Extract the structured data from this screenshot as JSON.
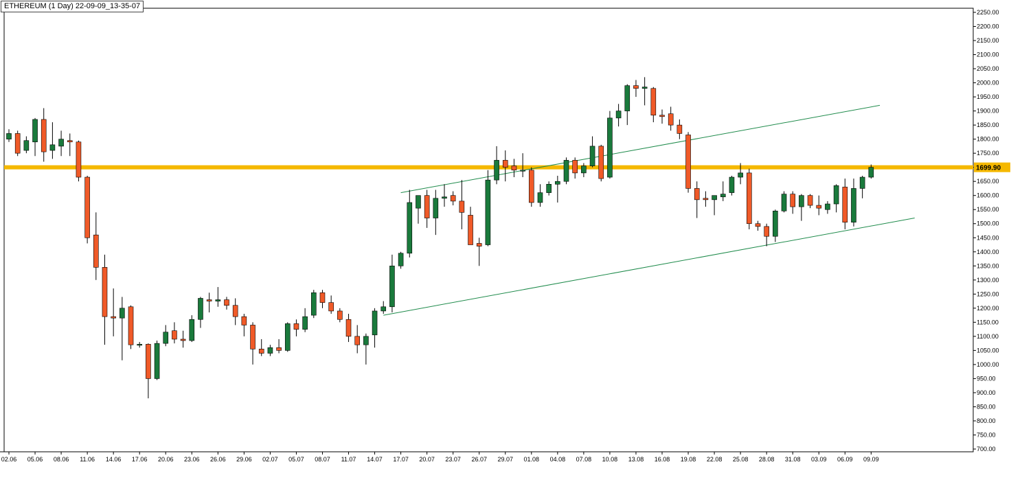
{
  "title": "ETHEREUM (1 Day) 22-09-09_13-35-07",
  "colors": {
    "up": "#1a7a3c",
    "down": "#f05a28",
    "resistance": "#f5b800",
    "channel": "#1d8a4a",
    "axis": "#000000"
  },
  "chart_data": {
    "type": "candlestick",
    "title": "ETHEREUM (1 Day) 22-09-09_13-35-07",
    "ylim": [
      700,
      2250
    ],
    "y_ticks": [
      700,
      750,
      800,
      850,
      900,
      950,
      1000,
      1050,
      1100,
      1150,
      1200,
      1250,
      1300,
      1350,
      1400,
      1450,
      1500,
      1550,
      1600,
      1650,
      1700,
      1750,
      1800,
      1850,
      1900,
      1950,
      2000,
      2050,
      2100,
      2150,
      2200,
      2250
    ],
    "y_tick_labels": [
      "700.00",
      "750.00",
      "800.00",
      "850.00",
      "900.00",
      "950.00",
      "1000.00",
      "1050.00",
      "1100.00",
      "1150.00",
      "1200.00",
      "1250.00",
      "1300.00",
      "1350.00",
      "1400.00",
      "1450.00",
      "1500.00",
      "1550.00",
      "1600.00",
      "1650.00",
      "1700.00",
      "1750.00",
      "1800.00",
      "1850.00",
      "1900.00",
      "1950.00",
      "2000.00",
      "2050.00",
      "2100.00",
      "2150.00",
      "2200.00",
      "2250.00"
    ],
    "x_labels": [
      {
        "label": "02.06",
        "index": 0
      },
      {
        "label": "05.06",
        "index": 3
      },
      {
        "label": "08.06",
        "index": 6
      },
      {
        "label": "11.06",
        "index": 9
      },
      {
        "label": "14.06",
        "index": 12
      },
      {
        "label": "17.06",
        "index": 15
      },
      {
        "label": "20.06",
        "index": 18
      },
      {
        "label": "23.06",
        "index": 21
      },
      {
        "label": "26.06",
        "index": 24
      },
      {
        "label": "29.06",
        "index": 27
      },
      {
        "label": "02.07",
        "index": 30
      },
      {
        "label": "05.07",
        "index": 33
      },
      {
        "label": "08.07",
        "index": 36
      },
      {
        "label": "11.07",
        "index": 39
      },
      {
        "label": "14.07",
        "index": 42
      },
      {
        "label": "17.07",
        "index": 45
      },
      {
        "label": "20.07",
        "index": 48
      },
      {
        "label": "23.07",
        "index": 51
      },
      {
        "label": "26.07",
        "index": 54
      },
      {
        "label": "29.07",
        "index": 57
      },
      {
        "label": "01.08",
        "index": 60
      },
      {
        "label": "04.08",
        "index": 63
      },
      {
        "label": "07.08",
        "index": 66
      },
      {
        "label": "10.08",
        "index": 69
      },
      {
        "label": "13.08",
        "index": 72
      },
      {
        "label": "16.08",
        "index": 75
      },
      {
        "label": "19.08",
        "index": 78
      },
      {
        "label": "22.08",
        "index": 81
      },
      {
        "label": "25.08",
        "index": 84
      },
      {
        "label": "28.08",
        "index": 87
      },
      {
        "label": "31.08",
        "index": 90
      },
      {
        "label": "03.09",
        "index": 93
      },
      {
        "label": "06.09",
        "index": 96
      },
      {
        "label": "09.09",
        "index": 99
      }
    ],
    "candles": [
      {
        "o": 1800,
        "h": 1835,
        "l": 1790,
        "c": 1820
      },
      {
        "o": 1820,
        "h": 1830,
        "l": 1740,
        "c": 1750
      },
      {
        "o": 1760,
        "h": 1810,
        "l": 1750,
        "c": 1795
      },
      {
        "o": 1790,
        "h": 1875,
        "l": 1740,
        "c": 1870
      },
      {
        "o": 1870,
        "h": 1910,
        "l": 1720,
        "c": 1755
      },
      {
        "o": 1760,
        "h": 1860,
        "l": 1730,
        "c": 1780
      },
      {
        "o": 1775,
        "h": 1830,
        "l": 1740,
        "c": 1800
      },
      {
        "o": 1795,
        "h": 1820,
        "l": 1740,
        "c": 1790
      },
      {
        "o": 1790,
        "h": 1795,
        "l": 1650,
        "c": 1665
      },
      {
        "o": 1665,
        "h": 1670,
        "l": 1430,
        "c": 1450
      },
      {
        "o": 1460,
        "h": 1540,
        "l": 1300,
        "c": 1345
      },
      {
        "o": 1345,
        "h": 1390,
        "l": 1070,
        "c": 1170
      },
      {
        "o": 1170,
        "h": 1270,
        "l": 1100,
        "c": 1165
      },
      {
        "o": 1165,
        "h": 1240,
        "l": 1015,
        "c": 1200
      },
      {
        "o": 1205,
        "h": 1210,
        "l": 1055,
        "c": 1070
      },
      {
        "o": 1070,
        "h": 1080,
        "l": 1060,
        "c": 1072
      },
      {
        "o": 1072,
        "h": 1075,
        "l": 880,
        "c": 950
      },
      {
        "o": 950,
        "h": 1085,
        "l": 945,
        "c": 1075
      },
      {
        "o": 1075,
        "h": 1140,
        "l": 1065,
        "c": 1115
      },
      {
        "o": 1120,
        "h": 1150,
        "l": 1075,
        "c": 1090
      },
      {
        "o": 1090,
        "h": 1120,
        "l": 1060,
        "c": 1085
      },
      {
        "o": 1085,
        "h": 1175,
        "l": 1080,
        "c": 1160
      },
      {
        "o": 1160,
        "h": 1240,
        "l": 1130,
        "c": 1235
      },
      {
        "o": 1230,
        "h": 1255,
        "l": 1185,
        "c": 1225
      },
      {
        "o": 1225,
        "h": 1275,
        "l": 1205,
        "c": 1230
      },
      {
        "o": 1230,
        "h": 1240,
        "l": 1195,
        "c": 1210
      },
      {
        "o": 1210,
        "h": 1235,
        "l": 1140,
        "c": 1170
      },
      {
        "o": 1170,
        "h": 1180,
        "l": 1100,
        "c": 1140
      },
      {
        "o": 1140,
        "h": 1150,
        "l": 1000,
        "c": 1055
      },
      {
        "o": 1055,
        "h": 1090,
        "l": 1030,
        "c": 1040
      },
      {
        "o": 1040,
        "h": 1070,
        "l": 1030,
        "c": 1060
      },
      {
        "o": 1060,
        "h": 1090,
        "l": 1040,
        "c": 1050
      },
      {
        "o": 1050,
        "h": 1150,
        "l": 1045,
        "c": 1145
      },
      {
        "o": 1145,
        "h": 1160,
        "l": 1100,
        "c": 1125
      },
      {
        "o": 1125,
        "h": 1200,
        "l": 1115,
        "c": 1170
      },
      {
        "o": 1175,
        "h": 1265,
        "l": 1165,
        "c": 1255
      },
      {
        "o": 1255,
        "h": 1265,
        "l": 1200,
        "c": 1220
      },
      {
        "o": 1220,
        "h": 1245,
        "l": 1180,
        "c": 1190
      },
      {
        "o": 1190,
        "h": 1200,
        "l": 1150,
        "c": 1160
      },
      {
        "o": 1160,
        "h": 1180,
        "l": 1080,
        "c": 1100
      },
      {
        "o": 1100,
        "h": 1140,
        "l": 1040,
        "c": 1070
      },
      {
        "o": 1070,
        "h": 1110,
        "l": 1000,
        "c": 1100
      },
      {
        "o": 1105,
        "h": 1200,
        "l": 1060,
        "c": 1190
      },
      {
        "o": 1190,
        "h": 1225,
        "l": 1180,
        "c": 1205
      },
      {
        "o": 1205,
        "h": 1390,
        "l": 1185,
        "c": 1350
      },
      {
        "o": 1350,
        "h": 1400,
        "l": 1340,
        "c": 1395
      },
      {
        "o": 1395,
        "h": 1620,
        "l": 1380,
        "c": 1575
      },
      {
        "o": 1555,
        "h": 1600,
        "l": 1500,
        "c": 1600
      },
      {
        "o": 1600,
        "h": 1620,
        "l": 1485,
        "c": 1520
      },
      {
        "o": 1520,
        "h": 1620,
        "l": 1460,
        "c": 1590
      },
      {
        "o": 1590,
        "h": 1640,
        "l": 1560,
        "c": 1595
      },
      {
        "o": 1600,
        "h": 1615,
        "l": 1565,
        "c": 1580
      },
      {
        "o": 1580,
        "h": 1655,
        "l": 1480,
        "c": 1540
      },
      {
        "o": 1530,
        "h": 1560,
        "l": 1440,
        "c": 1425
      },
      {
        "o": 1430,
        "h": 1450,
        "l": 1350,
        "c": 1420
      },
      {
        "o": 1425,
        "h": 1690,
        "l": 1420,
        "c": 1655
      },
      {
        "o": 1655,
        "h": 1775,
        "l": 1640,
        "c": 1725
      },
      {
        "o": 1725,
        "h": 1760,
        "l": 1650,
        "c": 1700
      },
      {
        "o": 1705,
        "h": 1730,
        "l": 1665,
        "c": 1690
      },
      {
        "o": 1690,
        "h": 1750,
        "l": 1665,
        "c": 1690
      },
      {
        "o": 1690,
        "h": 1700,
        "l": 1560,
        "c": 1575
      },
      {
        "o": 1575,
        "h": 1640,
        "l": 1560,
        "c": 1610
      },
      {
        "o": 1610,
        "h": 1650,
        "l": 1600,
        "c": 1640
      },
      {
        "o": 1640,
        "h": 1670,
        "l": 1575,
        "c": 1650
      },
      {
        "o": 1650,
        "h": 1735,
        "l": 1640,
        "c": 1725
      },
      {
        "o": 1725,
        "h": 1735,
        "l": 1660,
        "c": 1680
      },
      {
        "o": 1680,
        "h": 1715,
        "l": 1665,
        "c": 1705
      },
      {
        "o": 1705,
        "h": 1810,
        "l": 1700,
        "c": 1775
      },
      {
        "o": 1775,
        "h": 1780,
        "l": 1650,
        "c": 1660
      },
      {
        "o": 1665,
        "h": 1900,
        "l": 1660,
        "c": 1875
      },
      {
        "o": 1875,
        "h": 1925,
        "l": 1845,
        "c": 1900
      },
      {
        "o": 1900,
        "h": 1995,
        "l": 1850,
        "c": 1990
      },
      {
        "o": 1990,
        "h": 2010,
        "l": 1950,
        "c": 1980
      },
      {
        "o": 1980,
        "h": 2020,
        "l": 1920,
        "c": 1985
      },
      {
        "o": 1980,
        "h": 1985,
        "l": 1860,
        "c": 1885
      },
      {
        "o": 1885,
        "h": 1905,
        "l": 1855,
        "c": 1880
      },
      {
        "o": 1890,
        "h": 1915,
        "l": 1830,
        "c": 1850
      },
      {
        "o": 1850,
        "h": 1870,
        "l": 1800,
        "c": 1820
      },
      {
        "o": 1815,
        "h": 1825,
        "l": 1610,
        "c": 1625
      },
      {
        "o": 1625,
        "h": 1650,
        "l": 1520,
        "c": 1585
      },
      {
        "o": 1590,
        "h": 1615,
        "l": 1560,
        "c": 1585
      },
      {
        "o": 1585,
        "h": 1600,
        "l": 1530,
        "c": 1600
      },
      {
        "o": 1595,
        "h": 1650,
        "l": 1580,
        "c": 1605
      },
      {
        "o": 1610,
        "h": 1670,
        "l": 1600,
        "c": 1665
      },
      {
        "o": 1665,
        "h": 1715,
        "l": 1640,
        "c": 1680
      },
      {
        "o": 1680,
        "h": 1695,
        "l": 1480,
        "c": 1500
      },
      {
        "o": 1500,
        "h": 1510,
        "l": 1475,
        "c": 1490
      },
      {
        "o": 1490,
        "h": 1500,
        "l": 1420,
        "c": 1455
      },
      {
        "o": 1455,
        "h": 1550,
        "l": 1435,
        "c": 1545
      },
      {
        "o": 1545,
        "h": 1615,
        "l": 1540,
        "c": 1605
      },
      {
        "o": 1605,
        "h": 1615,
        "l": 1535,
        "c": 1560
      },
      {
        "o": 1560,
        "h": 1605,
        "l": 1510,
        "c": 1600
      },
      {
        "o": 1600,
        "h": 1605,
        "l": 1555,
        "c": 1565
      },
      {
        "o": 1565,
        "h": 1600,
        "l": 1530,
        "c": 1555
      },
      {
        "o": 1550,
        "h": 1580,
        "l": 1535,
        "c": 1570
      },
      {
        "o": 1570,
        "h": 1640,
        "l": 1540,
        "c": 1635
      },
      {
        "o": 1630,
        "h": 1660,
        "l": 1480,
        "c": 1505
      },
      {
        "o": 1505,
        "h": 1660,
        "l": 1490,
        "c": 1625
      },
      {
        "o": 1625,
        "h": 1670,
        "l": 1590,
        "c": 1665
      },
      {
        "o": 1665,
        "h": 1710,
        "l": 1660,
        "c": 1699.9
      }
    ],
    "resistance": {
      "price": 1700,
      "label": "1699.90"
    },
    "channel": {
      "upper": [
        {
          "index": 45,
          "price": 1610
        },
        {
          "index": 100,
          "price": 1920
        }
      ],
      "lower": [
        {
          "index": 43,
          "price": 1175
        },
        {
          "index": 104,
          "price": 1520
        }
      ]
    }
  }
}
